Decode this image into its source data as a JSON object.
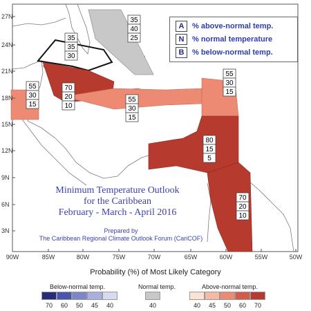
{
  "title": {
    "line1": "Minimum Temperature Outlook",
    "line2": "for the Caribbean",
    "line3": "February - March - April 2016"
  },
  "prepared": {
    "line1": "Prepared by",
    "line2": "The Caribbean Regional Climate Outlook Forum (CariCOF)"
  },
  "legend": {
    "items": [
      {
        "key": "A",
        "label": "% above-normal temp."
      },
      {
        "key": "N",
        "label": "% normal temperature"
      },
      {
        "key": "B",
        "label": "% below-normal temp."
      }
    ]
  },
  "axes": {
    "lat_labels": [
      "27N",
      "24N",
      "21N",
      "18N",
      "15N",
      "12N",
      "9N",
      "6N",
      "3N"
    ],
    "lon_labels": [
      "90W",
      "85W",
      "80W",
      "75W",
      "70W",
      "65W",
      "60W",
      "55W",
      "50W"
    ]
  },
  "regions": [
    {
      "id": "bahamas",
      "color": "#c8c8c8",
      "A": "35",
      "N": "40",
      "B": "25"
    },
    {
      "id": "cuba-north",
      "color": "#ffffff",
      "A": "35",
      "N": "35",
      "B": "30"
    },
    {
      "id": "cuba-jamaica",
      "color": "#b63a2e",
      "A": "70",
      "N": "20",
      "B": "10"
    },
    {
      "id": "belize",
      "color": "#ec8a73",
      "A": "55",
      "N": "30",
      "B": "15"
    },
    {
      "id": "greater-antilles",
      "color": "#ec8a73",
      "A": "55",
      "N": "30",
      "B": "15"
    },
    {
      "id": "leeward-islands",
      "color": "#ec8a73",
      "A": "55",
      "N": "30",
      "B": "15"
    },
    {
      "id": "windward-trinidad",
      "color": "#b63a2e",
      "A": "80",
      "N": "15",
      "B": "5"
    },
    {
      "id": "guianas",
      "color": "#b63a2e",
      "A": "70",
      "N": "20",
      "B": "10"
    }
  ],
  "colorbar": {
    "title": "Probability (%) of Most Likely Category",
    "below": {
      "label": "Below-normal temp.",
      "values": [
        "70",
        "60",
        "50",
        "45",
        "40"
      ],
      "colors": [
        "#262b7a",
        "#4a55b0",
        "#7d86c9",
        "#a9b0df",
        "#d6dbf2"
      ]
    },
    "normal": {
      "label": "Normal temp.",
      "values": [
        "40"
      ],
      "colors": [
        "#c8c8c8"
      ]
    },
    "above": {
      "label": "Above-normal temp.",
      "values": [
        "40",
        "45",
        "50",
        "60",
        "70"
      ],
      "colors": [
        "#fbe2d6",
        "#f6b9a3",
        "#ec8a73",
        "#d15c48",
        "#b63a2e"
      ]
    }
  }
}
